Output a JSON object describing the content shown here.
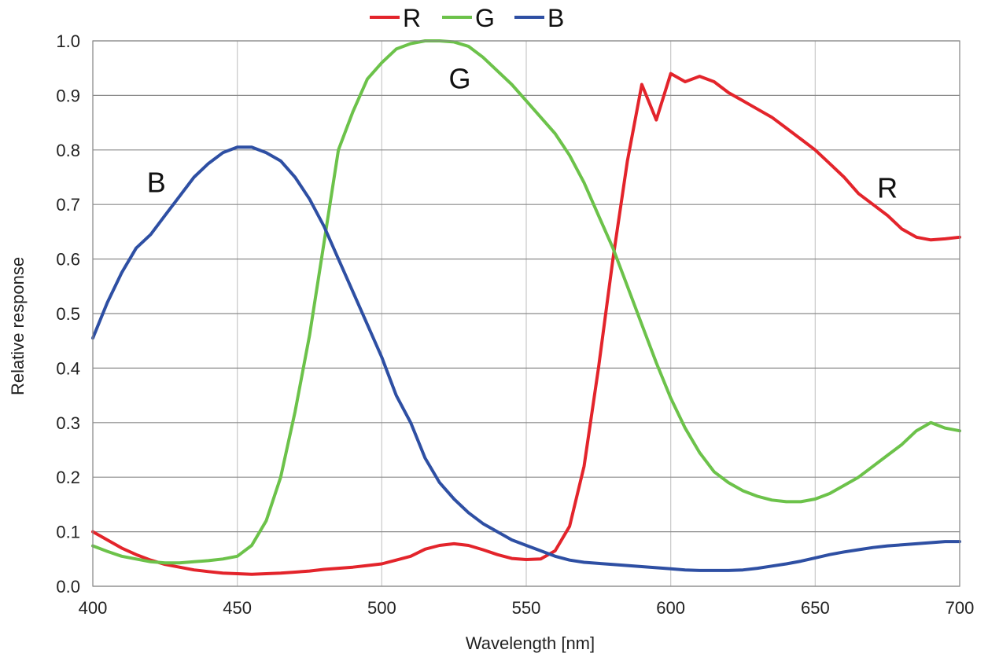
{
  "chart_data": {
    "type": "line",
    "xlabel": "Wavelength [nm]",
    "ylabel": "Relative response",
    "xlim": [
      400,
      700
    ],
    "ylim": [
      0,
      1.0
    ],
    "x_ticks": [
      400,
      450,
      500,
      550,
      600,
      650,
      700
    ],
    "y_ticks": [
      "0.0",
      "0.1",
      "0.2",
      "0.3",
      "0.4",
      "0.5",
      "0.6",
      "0.7",
      "0.8",
      "0.9",
      "1.0"
    ],
    "grid": true,
    "legend": {
      "position": "top-center",
      "entries": [
        "R",
        "G",
        "B"
      ]
    },
    "series": [
      {
        "name": "R",
        "color": "#e3242b",
        "x": [
          400,
          405,
          410,
          415,
          420,
          425,
          430,
          435,
          440,
          445,
          450,
          455,
          460,
          465,
          470,
          475,
          480,
          485,
          490,
          495,
          500,
          505,
          510,
          515,
          520,
          525,
          530,
          535,
          540,
          545,
          550,
          555,
          560,
          565,
          570,
          575,
          580,
          585,
          590,
          595,
          600,
          605,
          610,
          615,
          620,
          625,
          630,
          635,
          640,
          645,
          650,
          655,
          660,
          665,
          670,
          675,
          680,
          685,
          690,
          695,
          700
        ],
        "values": [
          0.1,
          0.085,
          0.07,
          0.058,
          0.048,
          0.04,
          0.035,
          0.03,
          0.027,
          0.024,
          0.023,
          0.022,
          0.023,
          0.024,
          0.026,
          0.028,
          0.031,
          0.033,
          0.035,
          0.038,
          0.041,
          0.048,
          0.055,
          0.068,
          0.075,
          0.078,
          0.075,
          0.067,
          0.058,
          0.051,
          0.049,
          0.05,
          0.065,
          0.11,
          0.22,
          0.4,
          0.6,
          0.78,
          0.92,
          0.855,
          0.94,
          0.925,
          0.935,
          0.925,
          0.905,
          0.89,
          0.875,
          0.86,
          0.84,
          0.82,
          0.8,
          0.775,
          0.75,
          0.72,
          0.7,
          0.68,
          0.655,
          0.64,
          0.635,
          0.637,
          0.64
        ]
      },
      {
        "name": "G",
        "color": "#6cc24a",
        "x": [
          400,
          405,
          410,
          415,
          420,
          425,
          430,
          435,
          440,
          445,
          450,
          455,
          460,
          465,
          470,
          475,
          480,
          485,
          490,
          495,
          500,
          505,
          510,
          515,
          520,
          525,
          530,
          535,
          540,
          545,
          550,
          555,
          560,
          565,
          570,
          575,
          580,
          585,
          590,
          595,
          600,
          605,
          610,
          615,
          620,
          625,
          630,
          635,
          640,
          645,
          650,
          655,
          660,
          665,
          670,
          675,
          680,
          685,
          690,
          695,
          700
        ],
        "values": [
          0.074,
          0.064,
          0.055,
          0.05,
          0.045,
          0.043,
          0.043,
          0.045,
          0.047,
          0.05,
          0.055,
          0.075,
          0.12,
          0.2,
          0.32,
          0.46,
          0.63,
          0.8,
          0.87,
          0.93,
          0.96,
          0.985,
          0.995,
          1.0,
          1.0,
          0.998,
          0.99,
          0.97,
          0.945,
          0.92,
          0.89,
          0.86,
          0.83,
          0.79,
          0.74,
          0.68,
          0.62,
          0.55,
          0.48,
          0.41,
          0.345,
          0.29,
          0.245,
          0.21,
          0.19,
          0.175,
          0.165,
          0.158,
          0.155,
          0.155,
          0.16,
          0.17,
          0.185,
          0.2,
          0.22,
          0.24,
          0.26,
          0.285,
          0.3,
          0.29,
          0.285
        ]
      },
      {
        "name": "B",
        "color": "#2e4fa3",
        "x": [
          400,
          405,
          410,
          415,
          420,
          425,
          430,
          435,
          440,
          445,
          450,
          455,
          460,
          465,
          470,
          475,
          480,
          485,
          490,
          495,
          500,
          505,
          510,
          515,
          520,
          525,
          530,
          535,
          540,
          545,
          550,
          555,
          560,
          565,
          570,
          575,
          580,
          585,
          590,
          595,
          600,
          605,
          610,
          615,
          620,
          625,
          630,
          635,
          640,
          645,
          650,
          655,
          660,
          665,
          670,
          675,
          680,
          685,
          690,
          695,
          700
        ],
        "values": [
          0.455,
          0.52,
          0.575,
          0.62,
          0.645,
          0.68,
          0.715,
          0.75,
          0.775,
          0.795,
          0.805,
          0.805,
          0.795,
          0.78,
          0.75,
          0.71,
          0.66,
          0.6,
          0.54,
          0.48,
          0.42,
          0.35,
          0.3,
          0.235,
          0.19,
          0.16,
          0.135,
          0.115,
          0.1,
          0.085,
          0.075,
          0.065,
          0.055,
          0.048,
          0.044,
          0.042,
          0.04,
          0.038,
          0.036,
          0.034,
          0.032,
          0.03,
          0.029,
          0.029,
          0.029,
          0.03,
          0.033,
          0.037,
          0.041,
          0.046,
          0.052,
          0.058,
          0.063,
          0.067,
          0.071,
          0.074,
          0.076,
          0.078,
          0.08,
          0.082,
          0.082
        ]
      }
    ],
    "annotations": [
      {
        "text": "B",
        "x": 422,
        "y": 0.74
      },
      {
        "text": "G",
        "x": 527,
        "y": 0.93
      },
      {
        "text": "R",
        "x": 675,
        "y": 0.73
      }
    ]
  }
}
